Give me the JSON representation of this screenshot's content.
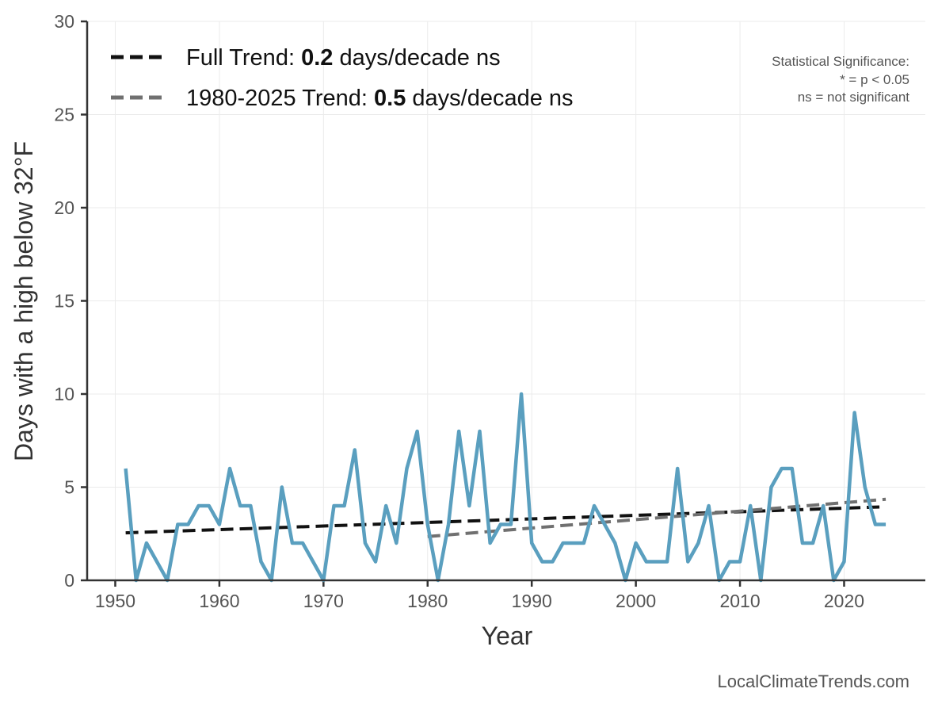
{
  "chart_data": {
    "type": "line",
    "title": "",
    "xlabel": "Year",
    "ylabel": "Days with a high below 32°F",
    "xlim": [
      1947.3,
      2027.8
    ],
    "ylim": [
      0,
      30
    ],
    "xticks": [
      1950,
      1960,
      1970,
      1980,
      1990,
      2000,
      2010,
      2020
    ],
    "yticks": [
      0,
      5,
      10,
      15,
      20,
      25,
      30
    ],
    "grid": true,
    "legend_position": "top-left",
    "x": [
      1951,
      1952,
      1953,
      1954,
      1955,
      1956,
      1957,
      1958,
      1959,
      1960,
      1961,
      1962,
      1963,
      1964,
      1965,
      1966,
      1967,
      1968,
      1969,
      1970,
      1971,
      1972,
      1973,
      1974,
      1975,
      1976,
      1977,
      1978,
      1979,
      1980,
      1981,
      1982,
      1983,
      1984,
      1985,
      1986,
      1987,
      1988,
      1989,
      1990,
      1991,
      1992,
      1993,
      1994,
      1995,
      1996,
      1997,
      1998,
      1999,
      2000,
      2001,
      2002,
      2003,
      2004,
      2005,
      2006,
      2007,
      2008,
      2009,
      2010,
      2011,
      2012,
      2013,
      2014,
      2015,
      2016,
      2017,
      2018,
      2019,
      2020,
      2021,
      2022,
      2023,
      2024
    ],
    "values": [
      6,
      0,
      2,
      1,
      0,
      3,
      3,
      4,
      4,
      3,
      6,
      4,
      4,
      1,
      0,
      5,
      2,
      2,
      1,
      0,
      4,
      4,
      7,
      2,
      1,
      4,
      2,
      6,
      8,
      3,
      0,
      3,
      8,
      4,
      8,
      2,
      3,
      3,
      10,
      2,
      1,
      1,
      2,
      2,
      2,
      4,
      3,
      2,
      0,
      2,
      1,
      1,
      1,
      6,
      1,
      2,
      4,
      0,
      1,
      1,
      4,
      0,
      5,
      6,
      6,
      2,
      2,
      4,
      0,
      1,
      9,
      5,
      3,
      3
    ],
    "series_color": "#5a9fbf",
    "trends": [
      {
        "label_prefix": "Full Trend: ",
        "rate": "0.2",
        "label_suffix": " days/decade ns",
        "x": [
          1951,
          2024
        ],
        "y": [
          2.55,
          3.95
        ],
        "color": "#111111"
      },
      {
        "label_prefix": "1980-2025 Trend: ",
        "rate": "0.5",
        "label_suffix": " days/decade ns",
        "x": [
          1980,
          2024
        ],
        "y": [
          2.35,
          4.35
        ],
        "color": "#707070"
      }
    ],
    "annotations": {
      "significance": [
        "Statistical Significance:",
        "* = p < 0.05",
        "ns = not significant"
      ],
      "footer": "LocalClimateTrends.com"
    }
  }
}
